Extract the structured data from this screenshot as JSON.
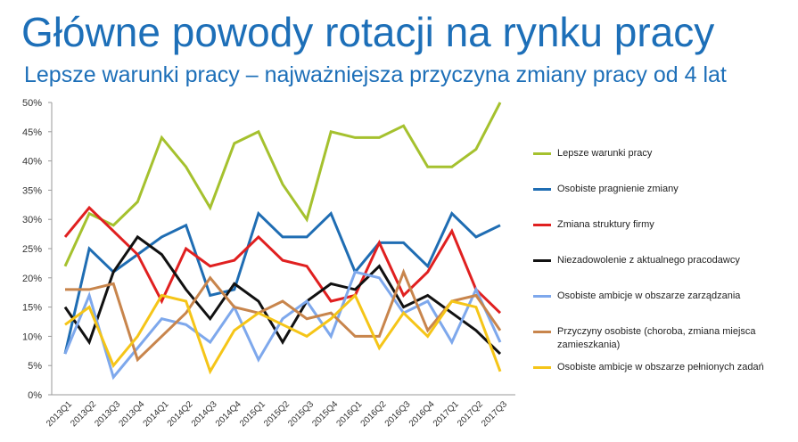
{
  "header": {
    "title": "Główne powody rotacji na rynku pracy",
    "subtitle": "Lepsze warunki pracy – najważniejsza przyczyna zmiany pracy od 4 lat"
  },
  "chart_data": {
    "type": "line",
    "categories": [
      "2013Q1",
      "2013Q2",
      "2013Q3",
      "2013Q4",
      "2014Q1",
      "2014Q2",
      "2014Q3",
      "2014Q4",
      "2015Q1",
      "2015Q2",
      "2015Q3",
      "2015Q4",
      "2016Q1",
      "2016Q2",
      "2016Q3",
      "2016Q4",
      "2017Q1",
      "2017Q2",
      "2017Q3"
    ],
    "y_tick_labels": [
      "0%",
      "5%",
      "10%",
      "15%",
      "20%",
      "25%",
      "30%",
      "35%",
      "40%",
      "45%",
      "50%"
    ],
    "ylim": [
      0,
      50
    ],
    "grid": false,
    "legend_position": "right",
    "series": [
      {
        "name": "Lepsze warunki pracy",
        "color": "#a5c12e",
        "values": [
          22,
          31,
          29,
          33,
          44,
          39,
          32,
          43,
          45,
          36,
          30,
          45,
          44,
          44,
          46,
          39,
          39,
          42,
          50
        ]
      },
      {
        "name": "Osobiste pragnienie zmiany",
        "color": "#1f6db3",
        "values": [
          7,
          25,
          21,
          24,
          27,
          29,
          17,
          18,
          31,
          27,
          27,
          31,
          21,
          26,
          26,
          22,
          31,
          27,
          29
        ]
      },
      {
        "name": "Zmiana struktury firmy",
        "color": "#e02020",
        "values": [
          27,
          32,
          28,
          24,
          16,
          25,
          22,
          23,
          27,
          23,
          22,
          16,
          17,
          26,
          17,
          21,
          28,
          18,
          14
        ]
      },
      {
        "name": "Niezadowolenie z aktualnego pracodawcy",
        "color": "#111111",
        "values": [
          15,
          9,
          21,
          27,
          24,
          18,
          13,
          19,
          16,
          9,
          16,
          19,
          18,
          22,
          15,
          17,
          14,
          11,
          7
        ]
      },
      {
        "name": "Osobiste ambicje w obszarze zarządzania",
        "color": "#7ea8ec",
        "values": [
          7,
          17,
          3,
          8,
          13,
          12,
          9,
          15,
          6,
          13,
          16,
          10,
          21,
          20,
          14,
          16,
          9,
          18,
          9
        ]
      },
      {
        "name": "Przyczyny osobiste (choroba, zmiana miejsca zamieszkania)",
        "color": "#c8854c",
        "values": [
          18,
          18,
          19,
          6,
          10,
          14,
          20,
          15,
          14,
          16,
          13,
          14,
          10,
          10,
          21,
          11,
          16,
          17,
          11
        ]
      },
      {
        "name": "Osobiste ambicje w obszarze pełnionych zadań",
        "color": "#f5c518",
        "values": [
          12,
          15,
          5,
          10,
          17,
          16,
          4,
          11,
          14,
          12,
          10,
          13,
          17,
          8,
          14,
          10,
          16,
          15,
          4
        ]
      }
    ]
  }
}
